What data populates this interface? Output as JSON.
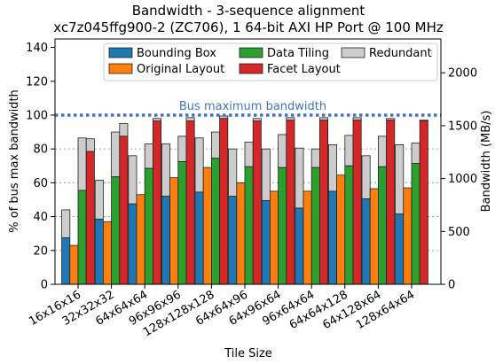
{
  "chart_data": {
    "type": "bar",
    "title": "Bandwidth - 3-sequence alignment",
    "subtitle": "xc7z045ffg900-2 (ZC706), 1 64-bit AXI HP Port @ 100 MHz",
    "xlabel": "Tile Size",
    "ylabel": "% of bus max bandwidth",
    "ylabel_right": "Bandwidth (MB/s)",
    "ylim": [
      0,
      145
    ],
    "ylim_right": [
      0,
      2320
    ],
    "yticks": [
      0,
      20,
      40,
      60,
      80,
      100,
      120,
      140
    ],
    "yticks_right": [
      0,
      500,
      1000,
      1500,
      2000
    ],
    "grid": "horizontal dotted at 20, 40, 60, 80",
    "legend_placement": "top-center",
    "categories": [
      "16x16x16",
      "32x32x32",
      "64x64x64",
      "96x96x96",
      "128x128x128",
      "64x64x96",
      "64x96x64",
      "96x64x64",
      "64x64x128",
      "64x128x64",
      "128x64x64"
    ],
    "reference_line": {
      "value": 100,
      "label": "Bus maximum bandwidth",
      "color": "#4472c4"
    },
    "series": [
      {
        "name": "Bounding Box",
        "color": "#1f77b4",
        "values": [
          27.5,
          38.5,
          47.5,
          52,
          54.5,
          52,
          49.5,
          45,
          55,
          50.5,
          41.5
        ],
        "redundant_top": [
          44,
          61.5,
          76,
          83,
          86.5,
          80,
          80,
          80.5,
          82.5,
          76,
          82.5
        ]
      },
      {
        "name": "Original Layout",
        "color": "#ff7f0e",
        "values": [
          23,
          37,
          53,
          63,
          69,
          60,
          55,
          55,
          64.5,
          56.5,
          57
        ]
      },
      {
        "name": "Data Tiling",
        "color": "#2ca02c",
        "values": [
          55.5,
          63.5,
          68.5,
          72.5,
          74.5,
          69.5,
          69,
          69,
          70,
          69.5,
          71.5
        ],
        "redundant_top": [
          86.5,
          90,
          83,
          87.5,
          90,
          84,
          88.5,
          80,
          88,
          87.5,
          83.5
        ]
      },
      {
        "name": "Facet Layout",
        "color": "#d62728",
        "values": [
          78.5,
          87.5,
          96.5,
          96.5,
          98,
          96.5,
          97,
          97,
          97,
          97,
          96.5
        ],
        "redundant_top": [
          86,
          95,
          98,
          98.5,
          99.5,
          98,
          98.5,
          98.5,
          98.5,
          98,
          97
        ]
      },
      {
        "name": "Redundant",
        "color": "#cccccc"
      }
    ]
  }
}
